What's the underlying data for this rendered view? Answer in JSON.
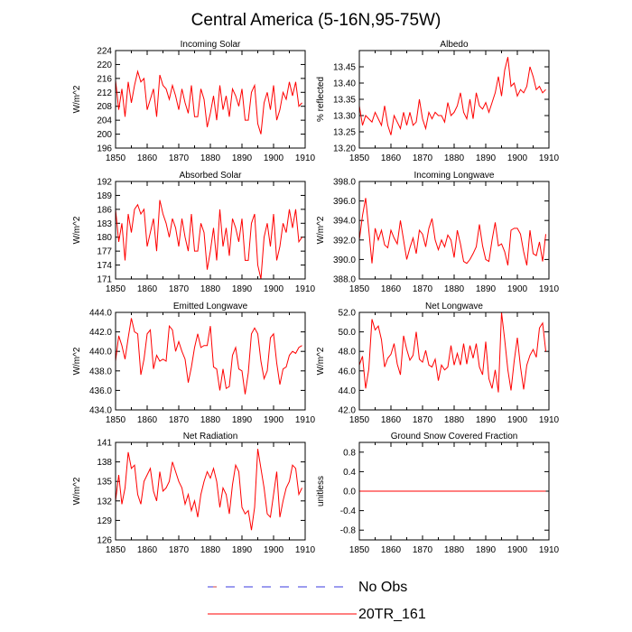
{
  "figure_title": "Central America (5-16N,95-75W)",
  "colors": {
    "model": "#ff0000",
    "obs_dash": "#3a3adf",
    "obs_alt": "#d04040"
  },
  "legend": {
    "entries": [
      {
        "label": "No Obs",
        "style": "dashed"
      },
      {
        "label": "20TR_161",
        "style": "solid"
      }
    ]
  },
  "chart_data": [
    {
      "type": "line",
      "title": "Incoming Solar",
      "ylabel": "W/m^2",
      "xlim": [
        1850,
        1910
      ],
      "ylim": [
        196,
        224
      ],
      "yticks": [
        "196",
        "200",
        "204",
        "208",
        "212",
        "216",
        "220",
        "224"
      ],
      "ytick_values": [
        196,
        200,
        204,
        208,
        212,
        216,
        220,
        224
      ],
      "xticks": [
        "1850",
        "1860",
        "1870",
        "1880",
        "1890",
        "1900",
        "1910"
      ],
      "x_start": 1850,
      "series": [
        {
          "name": "20TR_161",
          "values": [
            215.5,
            207,
            213,
            205,
            215,
            209,
            214,
            218,
            215,
            216,
            207,
            210,
            213,
            205,
            217,
            214,
            213,
            210,
            214,
            211,
            207,
            213,
            209,
            206,
            214,
            205,
            205,
            213,
            210,
            202,
            206,
            211,
            204,
            214,
            207,
            211,
            205,
            213,
            211,
            208,
            213,
            204,
            204,
            212,
            214,
            203,
            200,
            209,
            212,
            207,
            214,
            204,
            207,
            212,
            210,
            215,
            211,
            215,
            208,
            209
          ]
        }
      ]
    },
    {
      "type": "line",
      "title": "Albedo",
      "ylabel": "% reflected",
      "xlim": [
        1850,
        1910
      ],
      "ylim": [
        13.2,
        13.5
      ],
      "yticks": [
        "13.20",
        "13.25",
        "13.30",
        "13.35",
        "13.40",
        "13.45"
      ],
      "ytick_values": [
        13.2,
        13.25,
        13.3,
        13.35,
        13.4,
        13.45
      ],
      "xticks": [
        "1850",
        "1860",
        "1870",
        "1880",
        "1890",
        "1900",
        "1910"
      ],
      "x_start": 1850,
      "series": [
        {
          "name": "20TR_161",
          "values": [
            13.33,
            13.27,
            13.3,
            13.29,
            13.28,
            13.31,
            13.29,
            13.27,
            13.33,
            13.27,
            13.24,
            13.3,
            13.28,
            13.26,
            13.31,
            13.27,
            13.31,
            13.27,
            13.28,
            13.35,
            13.29,
            13.26,
            13.31,
            13.29,
            13.31,
            13.3,
            13.3,
            13.28,
            13.34,
            13.3,
            13.31,
            13.33,
            13.37,
            13.31,
            13.29,
            13.35,
            13.29,
            13.37,
            13.33,
            13.32,
            13.34,
            13.31,
            13.34,
            13.37,
            13.42,
            13.36,
            13.44,
            13.48,
            13.39,
            13.4,
            13.36,
            13.38,
            13.37,
            13.39,
            13.45,
            13.42,
            13.38,
            13.39,
            13.37,
            13.38
          ]
        }
      ]
    },
    {
      "type": "line",
      "title": "Absorbed Solar",
      "ylabel": "W/m^2",
      "xlim": [
        1850,
        1910
      ],
      "ylim": [
        171,
        192
      ],
      "yticks": [
        "171",
        "174",
        "177",
        "180",
        "183",
        "186",
        "189",
        "192"
      ],
      "ytick_values": [
        171,
        174,
        177,
        180,
        183,
        186,
        189,
        192
      ],
      "xticks": [
        "1850",
        "1860",
        "1870",
        "1880",
        "1890",
        "1900",
        "1910"
      ],
      "x_start": 1850,
      "series": [
        {
          "name": "20TR_161",
          "values": [
            186,
            179,
            183,
            175,
            185,
            181,
            186,
            187,
            185,
            186,
            178,
            181,
            184,
            177,
            188,
            185,
            183,
            180,
            184,
            182,
            178,
            184,
            180,
            177,
            185,
            177,
            177,
            183,
            181,
            173,
            177,
            182,
            175,
            186,
            178,
            182,
            176,
            184,
            182,
            179,
            184,
            175,
            175,
            183,
            185,
            174,
            171,
            180,
            183,
            178,
            185,
            175,
            178,
            183,
            181,
            186,
            182,
            186,
            179,
            180
          ]
        }
      ]
    },
    {
      "type": "line",
      "title": "Incoming Longwave",
      "ylabel": "W/m^2",
      "xlim": [
        1850,
        1910
      ],
      "ylim": [
        388.0,
        398.0
      ],
      "yticks": [
        "388.0",
        "390.0",
        "392.0",
        "394.0",
        "396.0",
        "398.0"
      ],
      "ytick_values": [
        388,
        390,
        392,
        394,
        396,
        398
      ],
      "xticks": [
        "1850",
        "1860",
        "1870",
        "1880",
        "1890",
        "1900",
        "1910"
      ],
      "x_start": 1850,
      "series": [
        {
          "name": "20TR_161",
          "values": [
            392.0,
            394.5,
            396.3,
            393.0,
            389.6,
            393.2,
            392.0,
            393.0,
            391.5,
            391.2,
            393.0,
            392.2,
            391.6,
            394.0,
            392.0,
            390.0,
            391.2,
            392.2,
            390.6,
            393.0,
            392.6,
            391.3,
            393.2,
            394.2,
            392.0,
            391.0,
            392.0,
            391.3,
            392.5,
            392.0,
            390.2,
            393.0,
            391.6,
            389.8,
            389.6,
            390.0,
            390.6,
            391.3,
            393.6,
            391.4,
            390.0,
            389.8,
            392.0,
            393.8,
            391.4,
            391.6,
            390.8,
            389.4,
            393.0,
            393.2,
            393.2,
            392.6,
            390.8,
            389.4,
            393.0,
            390.6,
            390.4,
            391.8,
            389.8,
            392.6
          ]
        }
      ]
    },
    {
      "type": "line",
      "title": "Emitted Longwave",
      "ylabel": "W/m^2",
      "xlim": [
        1850,
        1910
      ],
      "ylim": [
        434.0,
        444.0
      ],
      "yticks": [
        "434.0",
        "436.0",
        "438.0",
        "440.0",
        "442.0",
        "444.0"
      ],
      "ytick_values": [
        434,
        436,
        438,
        440,
        442,
        444
      ],
      "xticks": [
        "1850",
        "1860",
        "1870",
        "1880",
        "1890",
        "1900",
        "1910"
      ],
      "x_start": 1850,
      "series": [
        {
          "name": "20TR_161",
          "values": [
            439.0,
            441.6,
            440.6,
            439.2,
            441.4,
            443.4,
            442.0,
            441.8,
            437.6,
            439.2,
            441.8,
            442.2,
            438.2,
            439.6,
            439.0,
            439.2,
            439.0,
            442.6,
            442.2,
            440.0,
            441.0,
            440.0,
            439.2,
            436.8,
            438.4,
            440.4,
            441.8,
            440.4,
            440.6,
            440.6,
            442.6,
            438.4,
            438.2,
            436.0,
            438.2,
            436.2,
            436.4,
            439.6,
            440.4,
            438.2,
            438.0,
            435.6,
            437.8,
            441.8,
            442.4,
            441.8,
            439.0,
            437.2,
            438.0,
            441.4,
            441.8,
            438.8,
            436.6,
            438.2,
            438.4,
            439.6,
            440.0,
            439.8,
            440.4,
            440.6
          ]
        }
      ]
    },
    {
      "type": "line",
      "title": "Net Longwave",
      "ylabel": "W/m^2",
      "xlim": [
        1850,
        1910
      ],
      "ylim": [
        42.0,
        52.0
      ],
      "yticks": [
        "42.0",
        "44.0",
        "46.0",
        "48.0",
        "50.0",
        "52.0"
      ],
      "ytick_values": [
        42,
        44,
        46,
        48,
        50,
        52
      ],
      "xticks": [
        "1850",
        "1860",
        "1870",
        "1880",
        "1890",
        "1900",
        "1910"
      ],
      "x_start": 1850,
      "series": [
        {
          "name": "20TR_161",
          "values": [
            46.6,
            47.5,
            44.2,
            46.2,
            51.3,
            50.2,
            50.6,
            49.2,
            46.4,
            47.3,
            47.7,
            48.8,
            46.7,
            45.6,
            49.6,
            48.2,
            47.1,
            47.6,
            50.0,
            47.2,
            46.9,
            48.1,
            46.6,
            46.4,
            47.2,
            45.0,
            46.6,
            46.1,
            46.4,
            48.6,
            46.6,
            47.8,
            46.6,
            48.8,
            46.7,
            48.6,
            47.3,
            48.8,
            46.4,
            45.6,
            49.0,
            45.2,
            44.2,
            46.1,
            43.8,
            52.0,
            49.2,
            46.1,
            44.0,
            47.0,
            49.4,
            46.4,
            44.1,
            46.6,
            47.6,
            48.2,
            47.4,
            50.4,
            50.9,
            48.0
          ]
        }
      ]
    },
    {
      "type": "line",
      "title": "Net Radiation",
      "ylabel": "W/m^2",
      "xlim": [
        1850,
        1910
      ],
      "ylim": [
        126,
        141
      ],
      "yticks": [
        "126",
        "129",
        "132",
        "135",
        "138",
        "141"
      ],
      "ytick_values": [
        126,
        129,
        132,
        135,
        138,
        141
      ],
      "xticks": [
        "1850",
        "1860",
        "1870",
        "1880",
        "1890",
        "1900",
        "1910"
      ],
      "x_start": 1850,
      "series": [
        {
          "name": "20TR_161",
          "values": [
            132,
            136,
            131.5,
            134,
            139.5,
            137,
            137.5,
            133,
            131.5,
            135,
            136,
            137,
            133.5,
            132,
            136.5,
            133.5,
            134,
            135,
            138,
            136.5,
            135,
            134,
            131.5,
            133,
            130.5,
            132,
            129.5,
            133,
            135,
            136.5,
            135.5,
            137,
            135,
            131,
            134,
            133,
            130,
            134.5,
            137.5,
            136.5,
            131,
            130,
            130.5,
            127.5,
            131,
            140,
            137,
            134,
            130,
            129.5,
            133,
            136.5,
            129.5,
            132,
            134,
            135,
            137.5,
            137,
            133,
            134
          ]
        }
      ]
    },
    {
      "type": "line",
      "title": "Ground Snow Covered Fraction",
      "ylabel": "unitless",
      "xlim": [
        1850,
        1910
      ],
      "ylim": [
        -1.0,
        1.0
      ],
      "yticks": [
        "-0.8",
        "-0.4",
        "0.0",
        "0.4",
        "0.8"
      ],
      "ytick_values": [
        -0.8,
        -0.4,
        0,
        0.4,
        0.8
      ],
      "xticks": [
        "1850",
        "1860",
        "1870",
        "1880",
        "1890",
        "1900",
        "1910"
      ],
      "x_start": 1850,
      "series": [
        {
          "name": "20TR_161",
          "values": [
            0,
            0,
            0,
            0,
            0,
            0,
            0,
            0,
            0,
            0,
            0,
            0,
            0,
            0,
            0,
            0,
            0,
            0,
            0,
            0,
            0,
            0,
            0,
            0,
            0,
            0,
            0,
            0,
            0,
            0,
            0,
            0,
            0,
            0,
            0,
            0,
            0,
            0,
            0,
            0,
            0,
            0,
            0,
            0,
            0,
            0,
            0,
            0,
            0,
            0,
            0,
            0,
            0,
            0,
            0,
            0,
            0,
            0,
            0,
            0
          ]
        }
      ]
    }
  ]
}
